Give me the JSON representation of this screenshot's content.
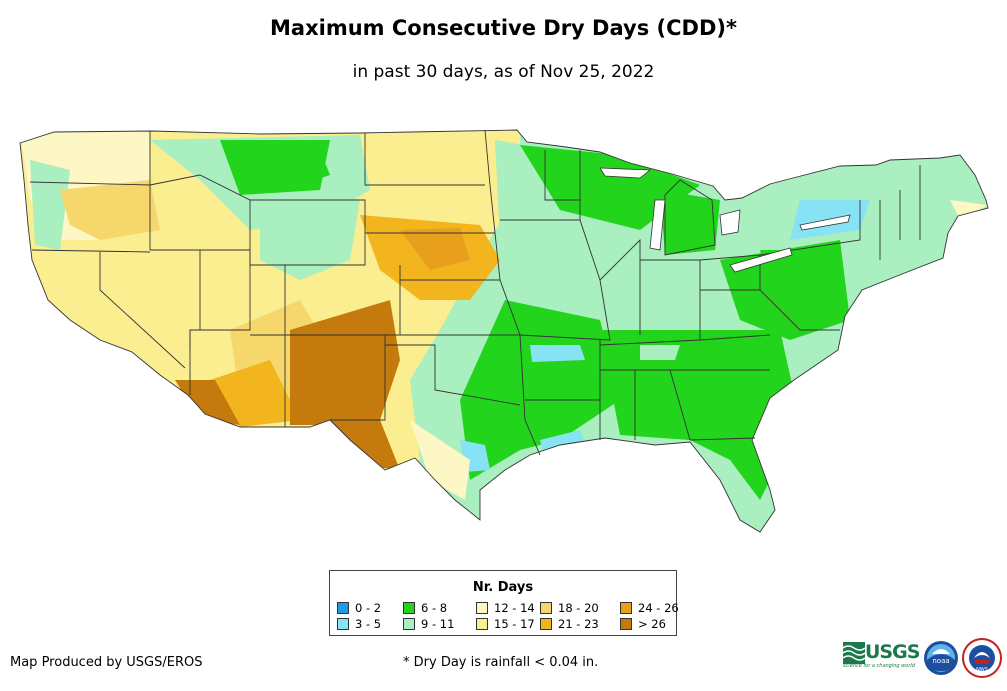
{
  "header": {
    "title": "Maximum Consecutive Dry Days (CDD)*",
    "subtitle": "in past 30 days, as of Nov 25, 2022"
  },
  "legend": {
    "title": "Nr. Days",
    "items": [
      {
        "label": "0 - 2",
        "color": "#1e9be8"
      },
      {
        "label": "3 - 5",
        "color": "#87e3f3"
      },
      {
        "label": "6 - 8",
        "color": "#23d41d"
      },
      {
        "label": "9 - 11",
        "color": "#a9efbf"
      },
      {
        "label": "12 - 14",
        "color": "#fcf7c4"
      },
      {
        "label": "15 - 17",
        "color": "#faee90"
      },
      {
        "label": "18 - 20",
        "color": "#f6d76c"
      },
      {
        "label": "21 - 23",
        "color": "#f3b51e"
      },
      {
        "label": "24 - 26",
        "color": "#e89f1c"
      },
      {
        "label": "> 26",
        "color": "#c47a0c"
      }
    ]
  },
  "footer": {
    "credit": "Map Produced by USGS/EROS",
    "footnote": "* Dry Day is rainfall < 0.04 in."
  },
  "logos": {
    "usgs": "USGS",
    "usgs_tagline": "science for a changing world",
    "noaa": "noaa",
    "nws": "NWS"
  }
}
